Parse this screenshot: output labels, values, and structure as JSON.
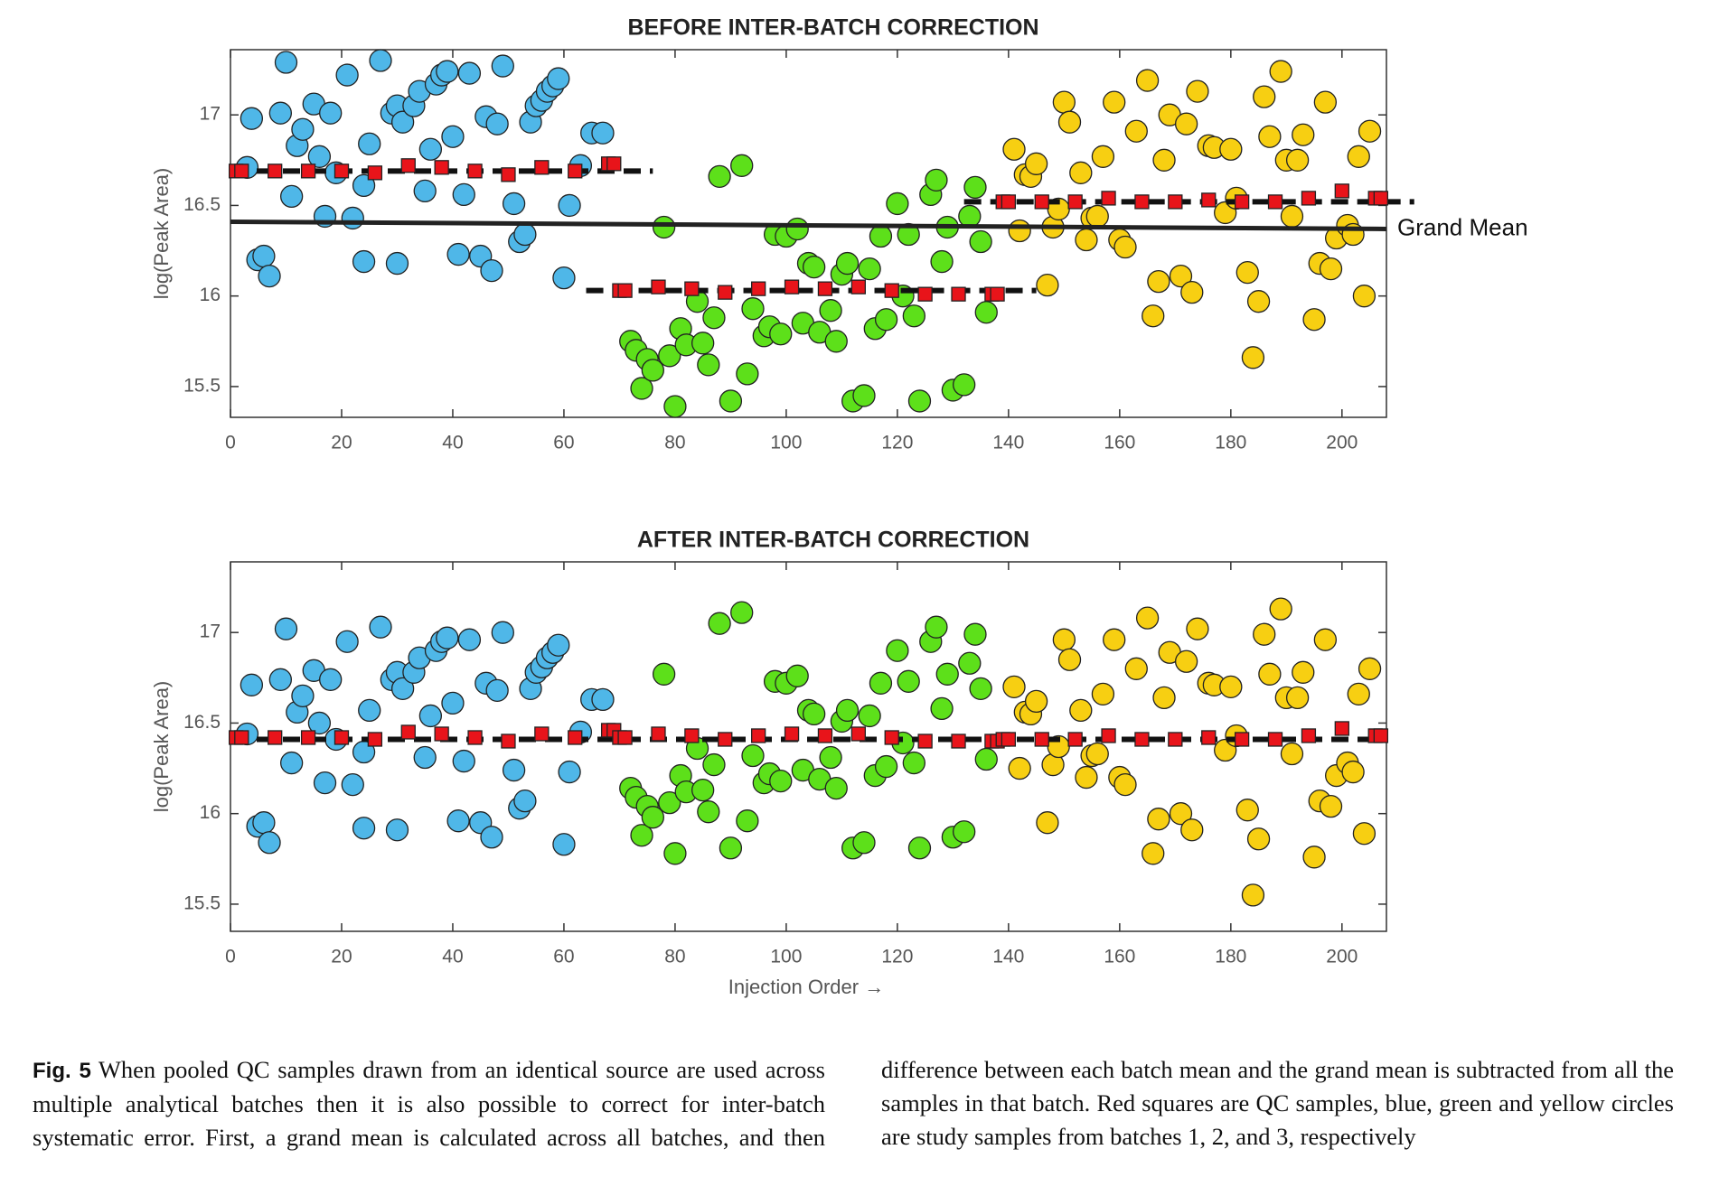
{
  "chart_data": [
    {
      "type": "scatter",
      "title": "BEFORE INTER-BATCH CORRECTION",
      "ylabel": "log(Peak Area)",
      "xlim": [
        0,
        208
      ],
      "ylim": [
        15.33,
        17.36
      ],
      "xticks": [
        0,
        20,
        40,
        60,
        80,
        100,
        120,
        140,
        160,
        180,
        200
      ],
      "yticks": [
        15.5,
        16,
        16.5,
        17
      ],
      "grid": false,
      "series": [
        {
          "color": "#4fb7e8",
          "marker": "circle",
          "x": [
            3.8,
            3,
            4.9,
            6,
            7,
            9,
            10,
            11,
            12,
            13,
            15,
            16,
            17,
            18,
            19,
            21,
            22,
            24,
            24,
            25,
            27,
            29,
            30,
            30,
            31,
            33,
            34,
            35,
            36,
            37,
            38,
            39,
            40,
            41,
            42,
            43,
            45,
            46,
            47,
            48,
            49,
            51,
            52,
            53,
            54,
            55,
            56,
            57,
            58,
            59,
            60,
            61,
            65,
            67,
            63
          ],
          "values": [
            16.98,
            16.71,
            16.2,
            16.22,
            16.11,
            17.01,
            17.29,
            16.55,
            16.83,
            16.92,
            17.06,
            16.77,
            16.44,
            17.01,
            16.68,
            17.22,
            16.43,
            16.61,
            16.19,
            16.84,
            17.3,
            17.01,
            17.05,
            16.18,
            16.96,
            17.05,
            17.13,
            16.58,
            16.81,
            17.17,
            17.22,
            17.24,
            16.88,
            16.23,
            16.56,
            17.23,
            16.22,
            16.99,
            16.14,
            16.95,
            17.27,
            16.51,
            16.3,
            16.34,
            16.96,
            17.05,
            17.08,
            17.13,
            17.16,
            17.2,
            16.1,
            16.5,
            16.9,
            16.9,
            16.72
          ]
        },
        {
          "color": "#5de01a",
          "marker": "circle",
          "x": [
            78,
            72,
            73,
            74,
            75,
            76,
            79,
            80,
            81,
            82,
            84,
            85,
            86,
            87,
            88,
            90,
            92,
            93,
            94,
            96,
            97,
            98,
            99,
            100,
            102,
            103,
            104,
            105,
            106,
            108,
            109,
            110,
            111,
            112,
            114,
            115,
            116,
            117,
            118,
            120,
            121,
            122,
            123,
            124,
            126,
            127,
            128,
            129,
            130,
            132,
            133,
            134,
            135,
            136
          ],
          "values": [
            16.38,
            15.75,
            15.7,
            15.49,
            15.65,
            15.59,
            15.67,
            15.39,
            15.82,
            15.73,
            15.97,
            15.74,
            15.62,
            15.88,
            16.66,
            15.42,
            16.72,
            15.57,
            15.93,
            15.78,
            15.83,
            16.34,
            15.79,
            16.33,
            16.37,
            15.85,
            16.18,
            16.16,
            15.8,
            15.92,
            15.75,
            16.12,
            16.18,
            15.42,
            15.45,
            16.15,
            15.82,
            16.33,
            15.87,
            16.51,
            16.0,
            16.34,
            15.89,
            15.42,
            16.56,
            16.64,
            16.19,
            16.38,
            15.48,
            15.51,
            16.44,
            16.6,
            16.3,
            15.91
          ]
        },
        {
          "color": "#f7cf12",
          "marker": "circle",
          "x": [
            141,
            142,
            143,
            144,
            145,
            147,
            148,
            149,
            150,
            151,
            153,
            154,
            155,
            156,
            157,
            159,
            160,
            161,
            163,
            165,
            166,
            167,
            168,
            169,
            171,
            172,
            173,
            174,
            176,
            177,
            179,
            180,
            181,
            183,
            184,
            185,
            186,
            187,
            189,
            190,
            191,
            192,
            193,
            195,
            196,
            197,
            198,
            199,
            201,
            202,
            203,
            204,
            205
          ],
          "values": [
            16.81,
            16.36,
            16.67,
            16.66,
            16.73,
            16.06,
            16.38,
            16.48,
            17.07,
            16.96,
            16.68,
            16.31,
            16.43,
            16.44,
            16.77,
            17.07,
            16.31,
            16.27,
            16.91,
            17.19,
            15.89,
            16.08,
            16.75,
            17.0,
            16.11,
            16.95,
            16.02,
            17.13,
            16.83,
            16.82,
            16.46,
            16.81,
            16.54,
            16.13,
            15.66,
            15.97,
            17.1,
            16.88,
            17.24,
            16.75,
            16.44,
            16.75,
            16.89,
            15.87,
            16.18,
            17.07,
            16.15,
            16.32,
            16.39,
            16.34,
            16.77,
            16.0,
            16.91
          ]
        },
        {
          "color": "#e8141a",
          "marker": "square",
          "x": [
            1,
            2,
            8,
            14,
            20,
            26,
            32,
            38,
            44,
            50,
            56,
            62,
            68,
            69,
            70,
            71,
            77,
            83,
            89,
            95,
            101,
            107,
            113,
            119,
            125,
            131,
            137,
            138,
            139,
            140,
            146,
            152,
            158,
            164,
            170,
            176,
            182,
            188,
            194,
            200,
            206,
            207
          ],
          "values": [
            16.69,
            16.69,
            16.69,
            16.69,
            16.69,
            16.68,
            16.72,
            16.71,
            16.69,
            16.67,
            16.71,
            16.69,
            16.73,
            16.73,
            16.03,
            16.03,
            16.05,
            16.04,
            16.02,
            16.04,
            16.05,
            16.04,
            16.05,
            16.03,
            16.01,
            16.01,
            16.01,
            16.01,
            16.52,
            16.52,
            16.52,
            16.52,
            16.54,
            16.52,
            16.52,
            16.53,
            16.52,
            16.52,
            16.54,
            16.58,
            16.54,
            16.54
          ]
        }
      ],
      "lines": [
        {
          "x": [
            0,
            208
          ],
          "values": [
            16.41,
            16.37
          ],
          "dashed": false,
          "label": "Grand Mean"
        },
        {
          "x": [
            0,
            76
          ],
          "values": [
            16.69,
            16.69
          ],
          "dashed": true
        },
        {
          "x": [
            64,
            145
          ],
          "values": [
            16.03,
            16.03
          ],
          "dashed": true
        },
        {
          "x": [
            132,
            213
          ],
          "values": [
            16.52,
            16.52
          ],
          "dashed": true
        }
      ]
    },
    {
      "type": "scatter",
      "title": "AFTER INTER-BATCH CORRECTION",
      "ylabel": "log(Peak Area)",
      "xlabel": "Injection Order →",
      "xlim": [
        0,
        208
      ],
      "ylim": [
        15.35,
        17.39
      ],
      "xticks": [
        0,
        20,
        40,
        60,
        80,
        100,
        120,
        140,
        160,
        180,
        200
      ],
      "yticks": [
        15.5,
        16,
        16.5,
        17
      ],
      "grid": false,
      "series": [
        {
          "color": "#4fb7e8",
          "marker": "circle",
          "x": [
            3.8,
            3,
            4.9,
            6,
            7,
            9,
            10,
            11,
            12,
            13,
            15,
            16,
            17,
            18,
            19,
            21,
            22,
            24,
            24,
            25,
            27,
            29,
            30,
            30,
            31,
            33,
            34,
            35,
            36,
            37,
            38,
            39,
            40,
            41,
            42,
            43,
            45,
            46,
            47,
            48,
            49,
            51,
            52,
            53,
            54,
            55,
            56,
            57,
            58,
            59,
            60,
            61,
            65,
            67,
            63
          ],
          "values": [
            16.71,
            16.44,
            15.93,
            15.95,
            15.84,
            16.74,
            17.02,
            16.28,
            16.56,
            16.65,
            16.79,
            16.5,
            16.17,
            16.74,
            16.41,
            16.95,
            16.16,
            16.34,
            15.92,
            16.57,
            17.03,
            16.74,
            16.78,
            15.91,
            16.69,
            16.78,
            16.86,
            16.31,
            16.54,
            16.9,
            16.95,
            16.97,
            16.61,
            15.96,
            16.29,
            16.96,
            15.95,
            16.72,
            15.87,
            16.68,
            17.0,
            16.24,
            16.03,
            16.07,
            16.69,
            16.78,
            16.81,
            16.86,
            16.89,
            16.93,
            15.83,
            16.23,
            16.63,
            16.63,
            16.45
          ]
        },
        {
          "color": "#5de01a",
          "marker": "circle",
          "x": [
            78,
            72,
            73,
            74,
            75,
            76,
            79,
            80,
            81,
            82,
            84,
            85,
            86,
            87,
            88,
            90,
            92,
            93,
            94,
            96,
            97,
            98,
            99,
            100,
            102,
            103,
            104,
            105,
            106,
            108,
            109,
            110,
            111,
            112,
            114,
            115,
            116,
            117,
            118,
            120,
            121,
            122,
            123,
            124,
            126,
            127,
            128,
            129,
            130,
            132,
            133,
            134,
            135,
            136
          ],
          "values": [
            16.77,
            16.14,
            16.09,
            15.88,
            16.04,
            15.98,
            16.06,
            15.78,
            16.21,
            16.12,
            16.36,
            16.13,
            16.01,
            16.27,
            17.05,
            15.81,
            17.11,
            15.96,
            16.32,
            16.17,
            16.22,
            16.73,
            16.18,
            16.72,
            16.76,
            16.24,
            16.57,
            16.55,
            16.19,
            16.31,
            16.14,
            16.51,
            16.57,
            15.81,
            15.84,
            16.54,
            16.21,
            16.72,
            16.26,
            16.9,
            16.39,
            16.73,
            16.28,
            15.81,
            16.95,
            17.03,
            16.58,
            16.77,
            15.87,
            15.9,
            16.83,
            16.99,
            16.69,
            16.3
          ]
        },
        {
          "color": "#f7cf12",
          "marker": "circle",
          "x": [
            141,
            142,
            143,
            144,
            145,
            147,
            148,
            149,
            150,
            151,
            153,
            154,
            155,
            156,
            157,
            159,
            160,
            161,
            163,
            165,
            166,
            167,
            168,
            169,
            171,
            172,
            173,
            174,
            176,
            177,
            179,
            180,
            181,
            183,
            184,
            185,
            186,
            187,
            189,
            190,
            191,
            192,
            193,
            195,
            196,
            197,
            198,
            199,
            201,
            202,
            203,
            204,
            205
          ],
          "values": [
            16.7,
            16.25,
            16.56,
            16.55,
            16.62,
            15.95,
            16.27,
            16.37,
            16.96,
            16.85,
            16.57,
            16.2,
            16.32,
            16.33,
            16.66,
            16.96,
            16.2,
            16.16,
            16.8,
            17.08,
            15.78,
            15.97,
            16.64,
            16.89,
            16.0,
            16.84,
            15.91,
            17.02,
            16.72,
            16.71,
            16.35,
            16.7,
            16.43,
            16.02,
            15.55,
            15.86,
            16.99,
            16.77,
            17.13,
            16.64,
            16.33,
            16.64,
            16.78,
            15.76,
            16.07,
            16.96,
            16.04,
            16.21,
            16.28,
            16.23,
            16.66,
            15.89,
            16.8
          ]
        },
        {
          "color": "#e8141a",
          "marker": "square",
          "x": [
            1,
            2,
            8,
            14,
            20,
            26,
            32,
            38,
            44,
            50,
            56,
            62,
            68,
            69,
            70,
            71,
            77,
            83,
            89,
            95,
            101,
            107,
            113,
            119,
            125,
            131,
            137,
            138,
            139,
            140,
            146,
            152,
            158,
            164,
            170,
            176,
            182,
            188,
            194,
            200,
            206,
            207
          ],
          "values": [
            16.42,
            16.42,
            16.42,
            16.42,
            16.42,
            16.41,
            16.45,
            16.44,
            16.42,
            16.4,
            16.44,
            16.42,
            16.46,
            16.46,
            16.42,
            16.42,
            16.44,
            16.43,
            16.41,
            16.43,
            16.44,
            16.43,
            16.44,
            16.42,
            16.4,
            16.4,
            16.4,
            16.4,
            16.41,
            16.41,
            16.41,
            16.41,
            16.43,
            16.41,
            16.41,
            16.42,
            16.41,
            16.41,
            16.43,
            16.47,
            16.43,
            16.43
          ]
        }
      ],
      "lines": [
        {
          "x": [
            0,
            208
          ],
          "values": [
            16.41,
            16.41
          ],
          "dashed": true
        }
      ]
    }
  ],
  "caption": {
    "label": "Fig. 5",
    "text": "When pooled QC samples drawn from an identical source are used across multiple analytical batches then it is also possible to correct for inter-batch systematic error. First, a grand mean is calculated across all batches, and then difference between each batch mean and the grand mean is subtracted from all the samples in that batch. Red squares are QC samples, blue, green and yellow circles are study samples from batches 1, 2, and 3, respectively"
  }
}
